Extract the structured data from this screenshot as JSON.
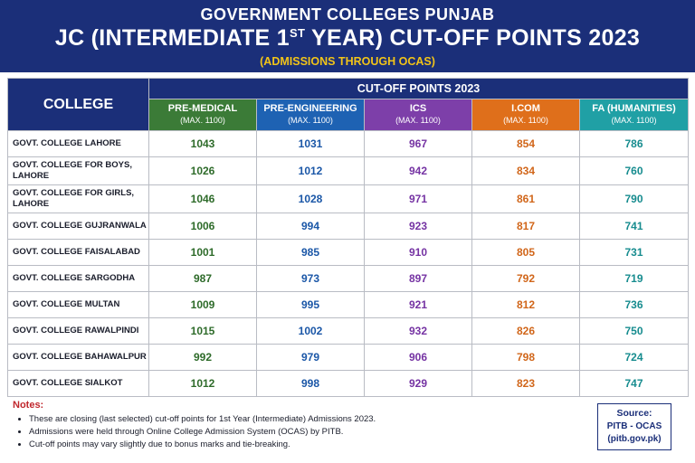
{
  "header": {
    "line1": "GOVERNMENT COLLEGES PUNJAB",
    "line2_pre": "JC (INTERMEDIATE 1",
    "line2_sup": "ST",
    "line2_post": " YEAR) CUT-OFF POINTS 2023",
    "line3": "(ADMISSIONS THROUGH OCAS)"
  },
  "table": {
    "college_header": "COLLEGE",
    "group_header": "CUT-OFF POINTS 2023",
    "columns": [
      {
        "name": "PRE-MEDICAL",
        "max": "(MAX. 1100)",
        "color": "#3b7b37"
      },
      {
        "name": "PRE-ENGINEERING",
        "max": "(MAX. 1100)",
        "color": "#1e62b3"
      },
      {
        "name": "ICS",
        "max": "(MAX. 1100)",
        "color": "#7d3fa9"
      },
      {
        "name": "I.COM",
        "max": "(MAX. 1100)",
        "color": "#df6f1b"
      },
      {
        "name": "FA (HUMANITIES)",
        "max": "(MAX. 1100)",
        "color": "#20a0a5"
      }
    ],
    "rows": [
      {
        "college": "GOVT. COLLEGE LAHORE",
        "values": [
          "1043",
          "1031",
          "967",
          "854",
          "786"
        ]
      },
      {
        "college": "GOVT. COLLEGE FOR BOYS, LAHORE",
        "values": [
          "1026",
          "1012",
          "942",
          "834",
          "760"
        ]
      },
      {
        "college": "GOVT. COLLEGE FOR GIRLS, LAHORE",
        "values": [
          "1046",
          "1028",
          "971",
          "861",
          "790"
        ]
      },
      {
        "college": "GOVT. COLLEGE GUJRANWALA",
        "values": [
          "1006",
          "994",
          "923",
          "817",
          "741"
        ]
      },
      {
        "college": "GOVT. COLLEGE FAISALABAD",
        "values": [
          "1001",
          "985",
          "910",
          "805",
          "731"
        ]
      },
      {
        "college": "GOVT. COLLEGE SARGODHA",
        "values": [
          "987",
          "973",
          "897",
          "792",
          "719"
        ]
      },
      {
        "college": "GOVT. COLLEGE MULTAN",
        "values": [
          "1009",
          "995",
          "921",
          "812",
          "736"
        ]
      },
      {
        "college": "GOVT. COLLEGE RAWALPINDI",
        "values": [
          "1015",
          "1002",
          "932",
          "826",
          "750"
        ]
      },
      {
        "college": "GOVT. COLLEGE BAHAWALPUR",
        "values": [
          "992",
          "979",
          "906",
          "798",
          "724"
        ]
      },
      {
        "college": "GOVT. COLLEGE SIALKOT",
        "values": [
          "1012",
          "998",
          "929",
          "823",
          "747"
        ]
      }
    ]
  },
  "notes": {
    "title": "Notes:",
    "items": [
      "These are closing (last selected) cut-off points for 1st Year (Intermediate) Admissions 2023.",
      "Admissions were held through Online College Admission System (OCAS) by PITB.",
      "Cut-off points may vary slightly due to bonus marks and tie-breaking."
    ]
  },
  "source": {
    "title": "Source:",
    "line1": "PITB - OCAS",
    "line2": "(pitb.gov.pk)"
  }
}
